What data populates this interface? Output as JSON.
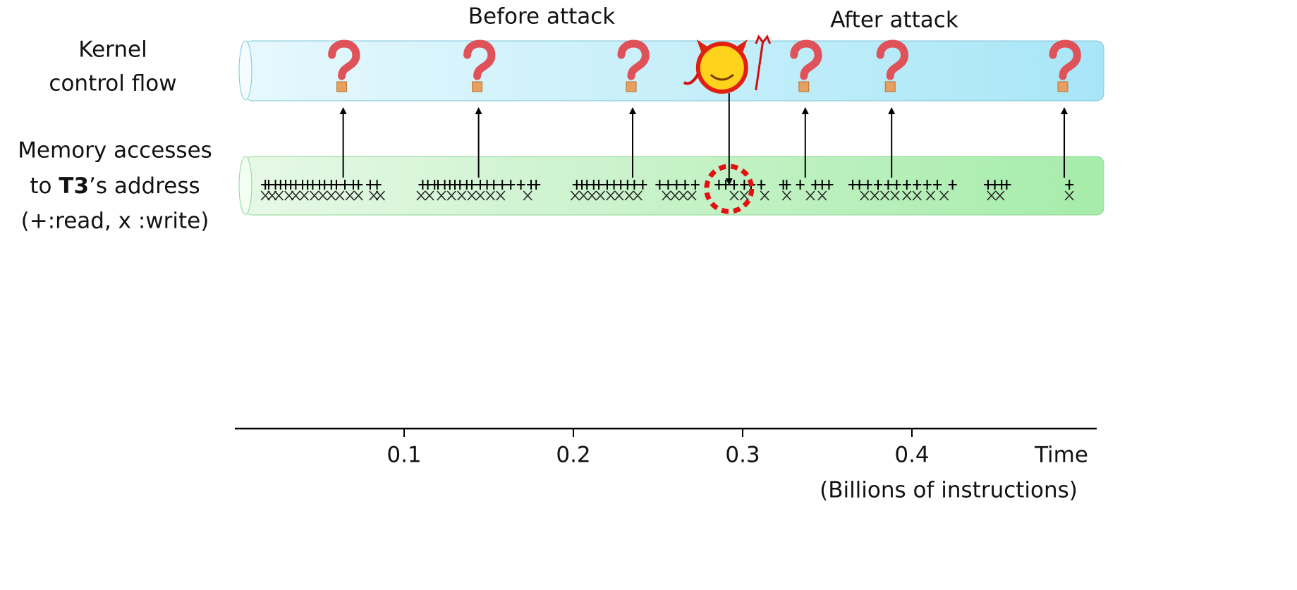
{
  "labels": {
    "before": "Before attack",
    "after": "After attack",
    "kernel": [
      "Kernel",
      "control flow"
    ],
    "memory": {
      "line1": "Memory accesses",
      "line2_prefix": "to ",
      "line2_bold": "T3",
      "line2_suffix": "’s address",
      "line3": "(+:read, x :write)"
    }
  },
  "timeline": {
    "xlim": [
      0,
      0.51
    ],
    "xticks": [
      0.1,
      0.2,
      0.3,
      0.4
    ],
    "axis_title": "Time",
    "axis_unit": "(Billions of instructions)",
    "control_flow_checks": [
      0.064,
      0.144,
      0.235,
      0.337,
      0.388,
      0.49
    ],
    "attack": 0.292,
    "reads": [
      0.018,
      0.02,
      0.024,
      0.027,
      0.03,
      0.033,
      0.036,
      0.04,
      0.043,
      0.046,
      0.05,
      0.053,
      0.057,
      0.06,
      0.065,
      0.07,
      0.073,
      0.08,
      0.084,
      0.111,
      0.114,
      0.118,
      0.12,
      0.124,
      0.127,
      0.13,
      0.133,
      0.137,
      0.14,
      0.145,
      0.149,
      0.153,
      0.158,
      0.163,
      0.169,
      0.175,
      0.178,
      0.202,
      0.205,
      0.208,
      0.212,
      0.215,
      0.22,
      0.224,
      0.228,
      0.232,
      0.236,
      0.241,
      0.251,
      0.256,
      0.261,
      0.266,
      0.272,
      0.286,
      0.29,
      0.295,
      0.301,
      0.305,
      0.311,
      0.324,
      0.326,
      0.334,
      0.343,
      0.347,
      0.351,
      0.365,
      0.369,
      0.374,
      0.38,
      0.386,
      0.391,
      0.397,
      0.403,
      0.409,
      0.415,
      0.424,
      0.445,
      0.449,
      0.453,
      0.456,
      0.493
    ],
    "writes": [
      0.018,
      0.022,
      0.026,
      0.032,
      0.036,
      0.041,
      0.047,
      0.052,
      0.057,
      0.062,
      0.068,
      0.073,
      0.082,
      0.086,
      0.11,
      0.115,
      0.122,
      0.128,
      0.134,
      0.14,
      0.145,
      0.151,
      0.157,
      0.173,
      0.201,
      0.206,
      0.211,
      0.216,
      0.222,
      0.227,
      0.233,
      0.238,
      0.255,
      0.26,
      0.265,
      0.27,
      0.295,
      0.301,
      0.313,
      0.326,
      0.34,
      0.347,
      0.372,
      0.378,
      0.384,
      0.39,
      0.397,
      0.403,
      0.411,
      0.419,
      0.447,
      0.452,
      0.493
    ]
  }
}
